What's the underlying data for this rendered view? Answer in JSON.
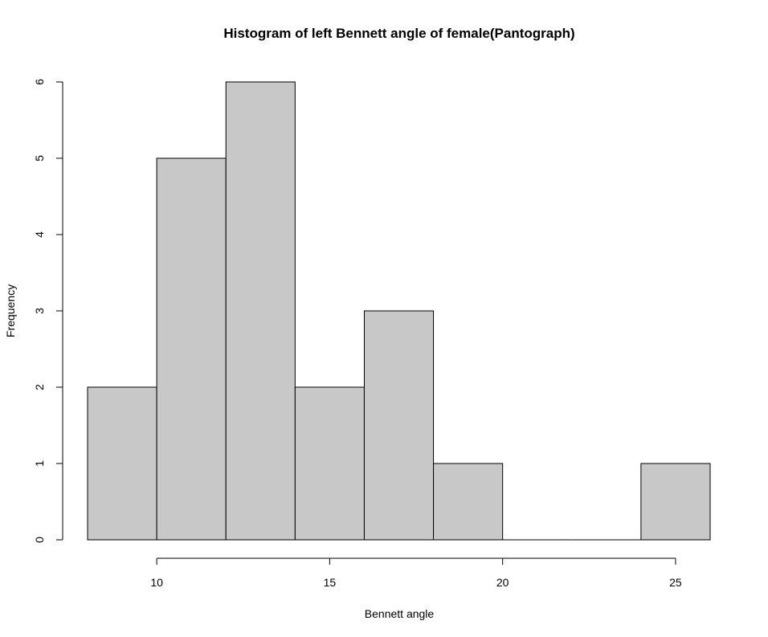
{
  "chart_data": {
    "type": "bar",
    "title": "Histogram of left Bennett angle of female(Pantograph)",
    "xlabel": "Bennett angle",
    "ylabel": "Frequency",
    "bins": [
      {
        "from": 8,
        "to": 10,
        "count": 2
      },
      {
        "from": 10,
        "to": 12,
        "count": 5
      },
      {
        "from": 12,
        "to": 14,
        "count": 6
      },
      {
        "from": 14,
        "to": 16,
        "count": 2
      },
      {
        "from": 16,
        "to": 18,
        "count": 3
      },
      {
        "from": 18,
        "to": 20,
        "count": 1
      },
      {
        "from": 20,
        "to": 22,
        "count": 0
      },
      {
        "from": 22,
        "to": 24,
        "count": 0
      },
      {
        "from": 24,
        "to": 26,
        "count": 1
      }
    ],
    "x_ticks": [
      10,
      15,
      20,
      25
    ],
    "y_ticks": [
      0,
      1,
      2,
      3,
      4,
      5,
      6
    ],
    "xlim": [
      8,
      26
    ],
    "ylim": [
      0,
      6
    ],
    "grid": false,
    "bar_fill": "#c8c8c8",
    "bar_stroke": "#000000"
  }
}
